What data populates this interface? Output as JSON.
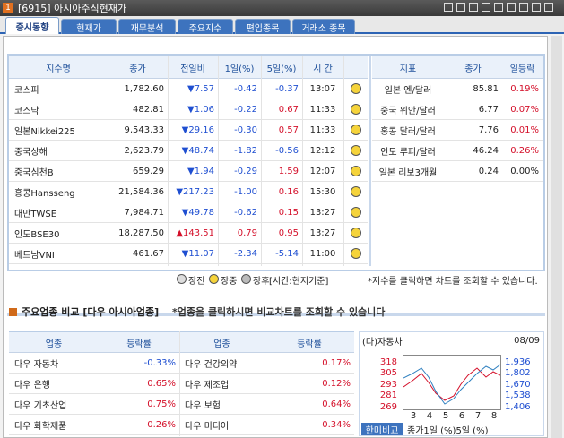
{
  "window": {
    "badge": "1",
    "title": "[6915] 아시아주식현재가"
  },
  "tabs": [
    "증시동향",
    "현재가",
    "재무분석",
    "주요지수",
    "편입종목",
    "거래소 종목"
  ],
  "index_table": {
    "headers": [
      "지수명",
      "종가",
      "전일비",
      "1일(%)",
      "5일(%)",
      "시 간"
    ],
    "rows": [
      [
        "코스피",
        "1,782.60",
        "▼7.57",
        "-0.42",
        "-0.37",
        "13:07"
      ],
      [
        "코스닥",
        "482.81",
        "▼1.06",
        "-0.22",
        "0.67",
        "11:33"
      ],
      [
        "일본Nikkei225",
        "9,543.33",
        "▼29.16",
        "-0.30",
        "0.57",
        "11:33"
      ],
      [
        "중국상해",
        "2,623.79",
        "▼48.74",
        "-1.82",
        "-0.56",
        "12:12"
      ],
      [
        "중국심천B",
        "659.29",
        "▼1.94",
        "-0.29",
        "1.59",
        "12:07"
      ],
      [
        "홍콩Hansseng",
        "21,584.36",
        "▼217.23",
        "-1.00",
        "0.16",
        "15:30"
      ],
      [
        "대만TWSE",
        "7,984.71",
        "▼49.78",
        "-0.62",
        "0.15",
        "13:27"
      ],
      [
        "인도BSE30",
        "18,287.50",
        "▲143.51",
        "0.79",
        "0.95",
        "13:27"
      ],
      [
        "베트남VNI",
        "461.67",
        "▼11.07",
        "-2.34",
        "-5.14",
        "11:00"
      ]
    ]
  },
  "legend": {
    "items": [
      "장전",
      "장중",
      "장후"
    ],
    "note": "[시간:현지기준]"
  },
  "index_note": "*지수를 클릭하면 차트를 조회할 수 있습니다.",
  "fx_table": {
    "headers": [
      "지표",
      "종가",
      "일등락"
    ],
    "rows": [
      [
        "일본 엔/달러",
        "85.81",
        "0.19%"
      ],
      [
        "중국 위안/달러",
        "6.77",
        "0.07%"
      ],
      [
        "홍콩 달러/달러",
        "7.76",
        "0.01%"
      ],
      [
        "인도 루피/달러",
        "46.24",
        "0.26%"
      ],
      [
        "일본 리보3개월",
        "0.24",
        "0.00%"
      ]
    ]
  },
  "sector_section": {
    "title": "주요업종 비교 [다우 아시아업종]",
    "note": "*업종을 클릭하시면 비교차트를 조회할 수 있습니다"
  },
  "sector_table": {
    "headers": [
      "업종",
      "등락률",
      "업종",
      "등락률"
    ],
    "rows": [
      [
        "다우 자동차",
        "-0.33%",
        "다우 건강의약",
        "0.17%"
      ],
      [
        "다우 은행",
        "0.65%",
        "다우 제조업",
        "0.12%"
      ],
      [
        "다우 기초산업",
        "0.75%",
        "다우 보험",
        "0.64%"
      ],
      [
        "다우 화학제품",
        "0.26%",
        "다우 미디어",
        "0.34%"
      ]
    ]
  },
  "mini_chart": {
    "title": "(다)자동차",
    "date": "08/09",
    "left_ticks": [
      "318",
      "305",
      "293",
      "281",
      "269"
    ],
    "right_ticks": [
      "1,936",
      "1,802",
      "1,670",
      "1,538",
      "1,406"
    ],
    "x_labels": [
      "3",
      "4",
      "5",
      "6",
      "7",
      "8"
    ],
    "button": "한미비교",
    "footer": "종가1일 (%)5일 (%)"
  }
}
